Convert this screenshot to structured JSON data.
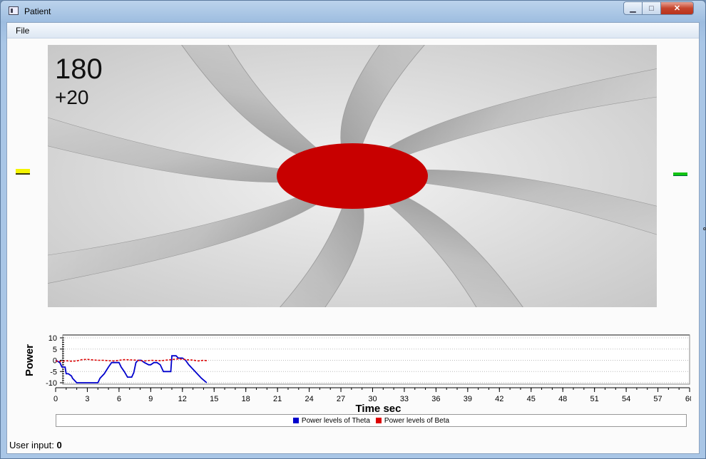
{
  "window": {
    "title": "Patient",
    "minimize_glyph": "▁",
    "maximize_glyph": "□",
    "close_glyph": "✕"
  },
  "menu": {
    "file_label": "File"
  },
  "game": {
    "score": "180",
    "delta": "+20",
    "target_color": "#c80000",
    "left_marker_color": "#f4f400",
    "right_marker_color": "#12c412"
  },
  "status": {
    "label": "User input:",
    "value": "0"
  },
  "chart_data": {
    "type": "line",
    "xlabel": "Time sec",
    "ylabel": "Power",
    "xlim": [
      0,
      60
    ],
    "ylim": [
      -10,
      10
    ],
    "x_ticks": [
      0,
      3,
      6,
      9,
      12,
      15,
      18,
      21,
      24,
      27,
      30,
      33,
      36,
      39,
      42,
      45,
      48,
      51,
      54,
      57,
      60
    ],
    "y_ticks": [
      10,
      5,
      0,
      -5,
      -10
    ],
    "grid": "horizontal-dotted",
    "legend_position": "bottom",
    "series": [
      {
        "name": "Power levels of Theta",
        "color": "#0000cc",
        "style": "solid",
        "x": [
          0,
          0.4,
          0.6,
          0.9,
          1.0,
          1.2,
          1.5,
          1.6,
          2.0,
          2.8,
          4.0,
          4.2,
          4.6,
          5.0,
          5.3,
          5.6,
          6.0,
          6.2,
          6.5,
          6.8,
          7.0,
          7.2,
          7.4,
          7.6,
          7.8,
          8.1,
          8.4,
          8.6,
          8.8,
          9.0,
          9.3,
          9.6,
          9.9,
          10.2,
          10.5,
          10.9,
          11.0,
          11.4,
          11.6,
          11.7,
          12.0,
          12.3,
          12.6,
          13.2,
          13.8,
          14.3
        ],
        "y": [
          0,
          -1,
          -3,
          -3,
          -6,
          -6,
          -7,
          -8,
          -10,
          -10,
          -10,
          -8,
          -6,
          -3,
          -1,
          -1,
          -1,
          -3,
          -5,
          -7.5,
          -7.5,
          -7.5,
          -5.5,
          -1,
          0,
          0,
          -1,
          -1.5,
          -2,
          -2,
          -1,
          -1,
          -2,
          -5,
          -5,
          -5,
          2,
          2,
          1,
          1,
          1,
          0,
          -2,
          -5,
          -8,
          -10
        ]
      },
      {
        "name": "Power levels of Beta",
        "color": "#dd0000",
        "style": "dashed",
        "x": [
          0,
          0.5,
          1,
          1.5,
          2,
          2.5,
          3,
          3.5,
          4,
          4.5,
          5,
          5.5,
          6,
          6.5,
          7,
          7.5,
          8,
          8.5,
          9,
          9.5,
          10,
          10.5,
          11,
          11.5,
          12,
          12.5,
          13,
          13.5,
          14,
          14.3
        ],
        "y": [
          -0.3,
          -0.5,
          -0.2,
          -0.4,
          -0.3,
          0.3,
          0.4,
          0.2,
          0,
          0,
          -0.2,
          -0.3,
          0,
          0.3,
          0.2,
          0.1,
          -0.2,
          -0.3,
          0,
          -0.1,
          -0.2,
          0.1,
          0.3,
          0.6,
          0.5,
          0.2,
          0.1,
          -0.3,
          0,
          -0.2
        ]
      }
    ]
  }
}
